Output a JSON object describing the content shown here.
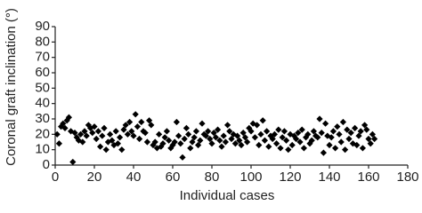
{
  "chart_data": {
    "type": "scatter",
    "x_label": "Individual cases",
    "y_label": "Coronal graft inclination (°)",
    "color": "#000000",
    "x": [
      1,
      2,
      3,
      4,
      5,
      6,
      7,
      8,
      9,
      10,
      11,
      12,
      13,
      14,
      15,
      16,
      17,
      18,
      19,
      20,
      21,
      22,
      23,
      24,
      25,
      26,
      27,
      28,
      29,
      30,
      31,
      32,
      33,
      34,
      35,
      36,
      37,
      38,
      39,
      40,
      41,
      42,
      43,
      44,
      45,
      46,
      47,
      48,
      49,
      50,
      51,
      52,
      53,
      54,
      55,
      56,
      57,
      58,
      59,
      60,
      61,
      62,
      63,
      64,
      65,
      66,
      67,
      68,
      69,
      70,
      71,
      72,
      73,
      74,
      75,
      76,
      77,
      78,
      79,
      80,
      81,
      82,
      83,
      84,
      85,
      86,
      87,
      88,
      89,
      90,
      91,
      92,
      93,
      94,
      95,
      96,
      97,
      98,
      99,
      100,
      101,
      102,
      103,
      104,
      105,
      106,
      107,
      108,
      109,
      110,
      111,
      112,
      113,
      114,
      115,
      116,
      117,
      118,
      119,
      120,
      121,
      122,
      123,
      124,
      125,
      126,
      127,
      128,
      129,
      130,
      131,
      132,
      133,
      134,
      135,
      136,
      137,
      138,
      139,
      140,
      141,
      142,
      143,
      144,
      145,
      146,
      147,
      148,
      149,
      150,
      151,
      152,
      153,
      154,
      155,
      156,
      157,
      158,
      159,
      160,
      161,
      162,
      163
    ],
    "values": [
      20,
      14,
      25,
      27,
      24,
      29,
      31,
      22,
      2,
      21,
      18,
      16,
      20,
      15,
      22,
      19,
      26,
      24,
      21,
      25,
      17,
      22,
      12,
      19,
      24,
      10,
      15,
      20,
      16,
      13,
      22,
      14,
      18,
      10,
      23,
      26,
      20,
      28,
      22,
      19,
      33,
      25,
      17,
      28,
      22,
      21,
      15,
      29,
      26,
      13,
      15,
      11,
      20,
      12,
      14,
      18,
      22,
      16,
      11,
      13,
      15,
      28,
      19,
      14,
      5,
      17,
      24,
      20,
      11,
      15,
      18,
      22,
      13,
      16,
      27,
      20,
      19,
      22,
      17,
      14,
      21,
      18,
      23,
      16,
      12,
      19,
      15,
      26,
      22,
      17,
      20,
      14,
      19,
      16,
      13,
      21,
      18,
      15,
      24,
      22,
      27,
      18,
      26,
      13,
      20,
      29,
      16,
      22,
      12,
      19,
      17,
      20,
      14,
      23,
      11,
      18,
      22,
      16,
      10,
      20,
      13,
      19,
      17,
      21,
      15,
      23,
      11,
      18,
      20,
      14,
      16,
      22,
      19,
      18,
      30,
      21,
      8,
      27,
      19,
      13,
      18,
      22,
      11,
      25,
      20,
      15,
      28,
      10,
      23,
      17,
      21,
      14,
      24,
      13,
      19,
      22,
      11,
      26,
      23,
      17,
      14,
      20,
      17
    ],
    "xlim": [
      0,
      180
    ],
    "xticks": [
      0,
      20,
      40,
      60,
      80,
      100,
      120,
      140,
      160,
      180
    ],
    "ylim": [
      0,
      90
    ],
    "yticks": [
      0,
      10,
      20,
      30,
      40,
      50,
      60,
      70,
      80,
      90
    ]
  }
}
